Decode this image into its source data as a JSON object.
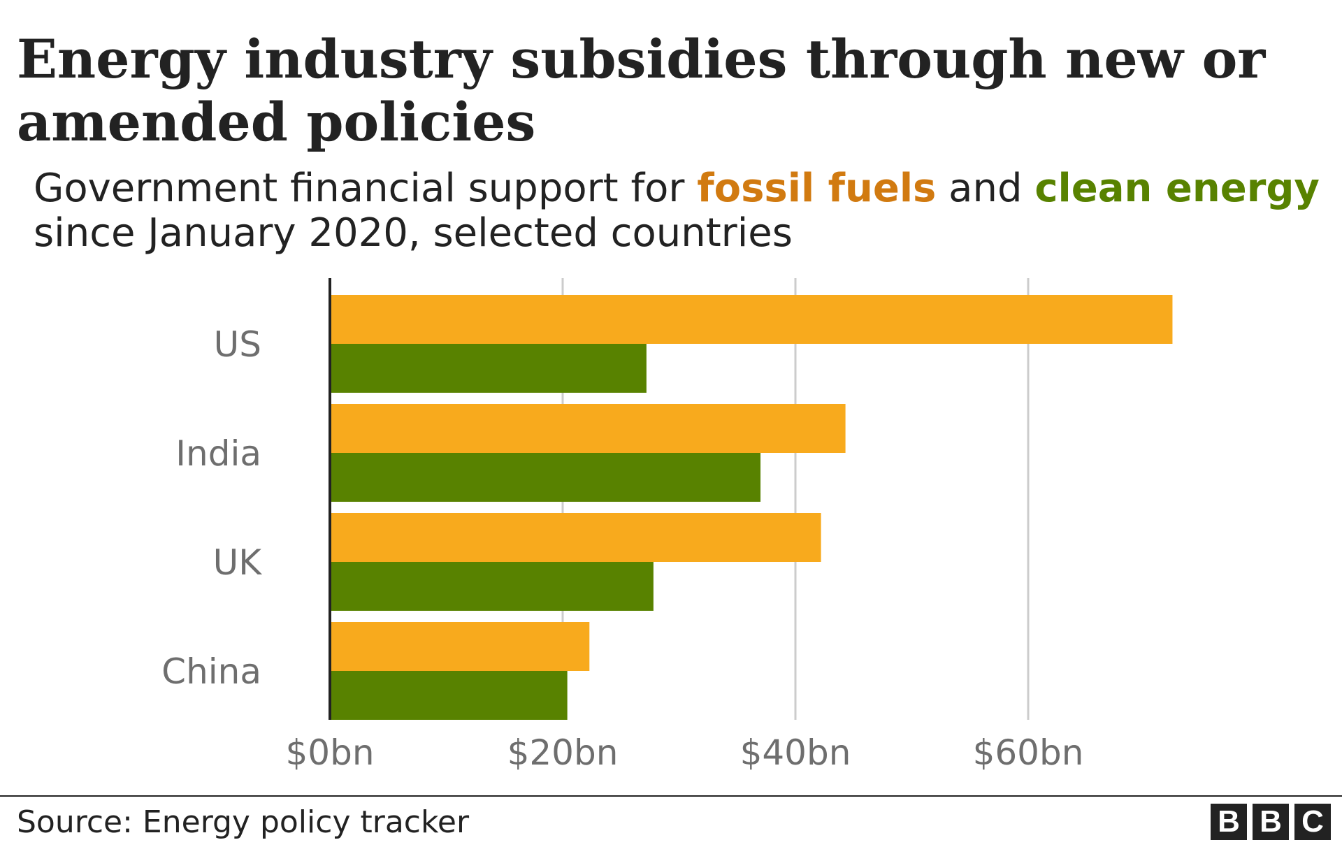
{
  "header": {
    "title": "Energy industry subsidies through new or amended policies",
    "subtitle_part1": "Government financial support for ",
    "subtitle_fossil": "fossil fuels",
    "subtitle_part2": " and ",
    "subtitle_clean": "clean energy",
    "subtitle_part3": " since January 2020, selected countries"
  },
  "colors": {
    "fossil": "#f8aa1d",
    "clean": "#588200",
    "fossil_text": "#d17a10",
    "gridline": "#cccccc",
    "axis": "#222222"
  },
  "chart_data": {
    "type": "bar",
    "orientation": "horizontal",
    "categories": [
      "US",
      "India",
      "UK",
      "China"
    ],
    "series": [
      {
        "name": "fossil fuels",
        "color": "#f8aa1d",
        "values": [
          72.4,
          44.3,
          42.2,
          22.3
        ]
      },
      {
        "name": "clean energy",
        "color": "#588200",
        "values": [
          27.2,
          37.0,
          27.8,
          20.4
        ]
      }
    ],
    "xlim": [
      0,
      70
    ],
    "xticks": [
      0,
      20,
      40,
      60
    ],
    "xtick_labels": [
      "$0bn",
      "$20bn",
      "$40bn",
      "$60bn"
    ],
    "grid": true,
    "legend": "in subtitle"
  },
  "footer": {
    "source": "Source: Energy policy tracker",
    "logo": [
      "B",
      "B",
      "C"
    ]
  }
}
